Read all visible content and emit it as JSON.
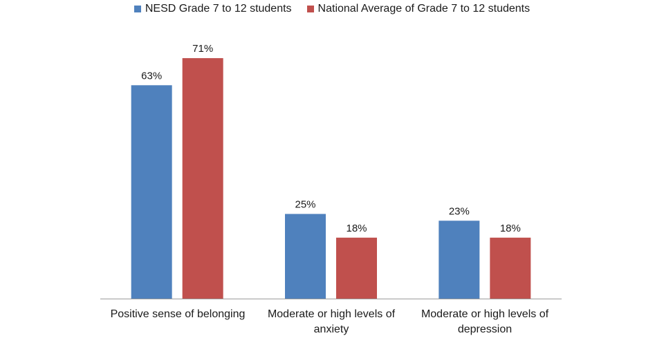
{
  "chart_data": {
    "type": "bar",
    "title": "",
    "xlabel": "",
    "ylabel": "",
    "ylim": [
      0,
      80
    ],
    "grid": false,
    "legend_position": "top",
    "categories": [
      "Positive sense of belonging",
      "Moderate or high levels of anxiety",
      "Moderate or high levels of depression"
    ],
    "series": [
      {
        "name": "NESD Grade 7 to 12 students",
        "color": "#4F81BD",
        "values": [
          63,
          25,
          23
        ],
        "labels": [
          "63%",
          "25%",
          "23%"
        ]
      },
      {
        "name": "National Average of Grade 7 to 12 students",
        "color": "#C0504D",
        "values": [
          71,
          18,
          18
        ],
        "labels": [
          "71%",
          "18%",
          "18%"
        ]
      }
    ]
  }
}
